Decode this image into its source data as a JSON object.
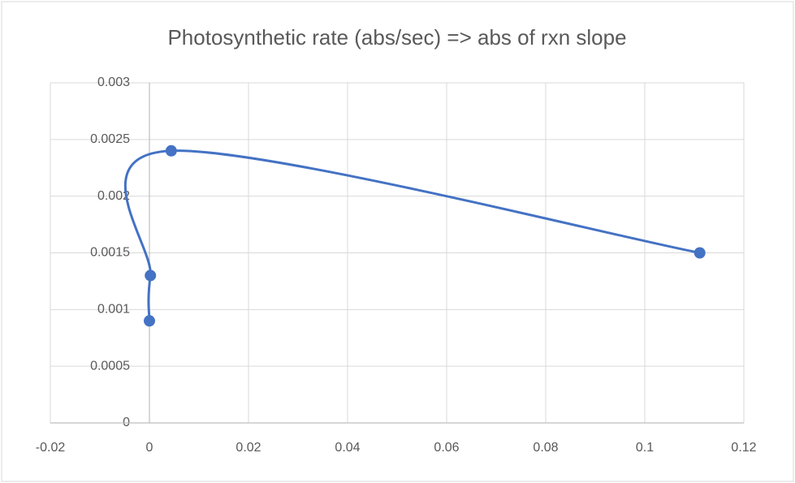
{
  "chart_data": {
    "type": "scatter-smooth",
    "title": "Photosynthetic rate (abs/sec) => abs of rxn slope",
    "series": [
      {
        "color": "#4472c4",
        "x": [
          0,
          0.0002,
          0.0044,
          0.1111
        ],
        "values": [
          0.0009,
          0.0013,
          0.0024,
          0.0015
        ]
      }
    ],
    "xlim": [
      -0.02,
      0.12
    ],
    "xticks": [
      -0.02,
      0,
      0.02,
      0.04,
      0.06,
      0.08,
      0.1,
      0.12
    ],
    "ylim": [
      0,
      0.003
    ],
    "yticks": [
      0,
      0.0005,
      0.001,
      0.0015,
      0.002,
      0.0025,
      0.003
    ],
    "grid": true
  }
}
